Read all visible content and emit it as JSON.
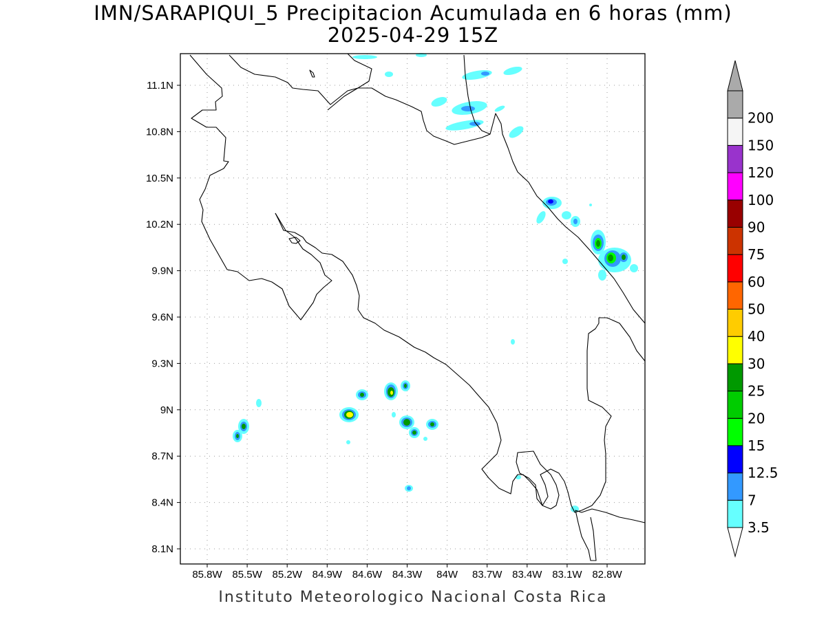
{
  "header": {
    "title_line1": "IMN/SARAPIQUI_5 Precipitacion Acumulada en 6 horas (mm)",
    "title_line2": "2025-04-29 15Z"
  },
  "footer": {
    "credit": "Instituto Meteorologico Nacional Costa Rica"
  },
  "map": {
    "lat_labels": [
      "11.1N",
      "10.8N",
      "10.5N",
      "10.2N",
      "9.9N",
      "9.6N",
      "9.3N",
      "9N",
      "8.7N",
      "8.4N",
      "8.1N"
    ],
    "lon_labels": [
      "85.8W",
      "85.5W",
      "85.2W",
      "84.9W",
      "84.6W",
      "84.3W",
      "84W",
      "83.7W",
      "83.4W",
      "83.1W",
      "82.8W"
    ],
    "grid": "dotted"
  },
  "colorbar": {
    "labels": [
      "3.5",
      "7",
      "12.5",
      "15",
      "20",
      "25",
      "30",
      "40",
      "50",
      "60",
      "75",
      "90",
      "100",
      "120",
      "150",
      "200"
    ],
    "colors": [
      "#66ffff",
      "#3399ff",
      "#0000ff",
      "#00ff00",
      "#00cc00",
      "#009900",
      "#ffff00",
      "#ffcc00",
      "#ff6600",
      "#ff0000",
      "#cc3300",
      "#990000",
      "#ff00ff",
      "#9933cc",
      "#f5f5f5",
      "#aaaaaa"
    ],
    "high_arrow_color": "#aaaaaa",
    "low_arrow_color": "#ffffff"
  }
}
